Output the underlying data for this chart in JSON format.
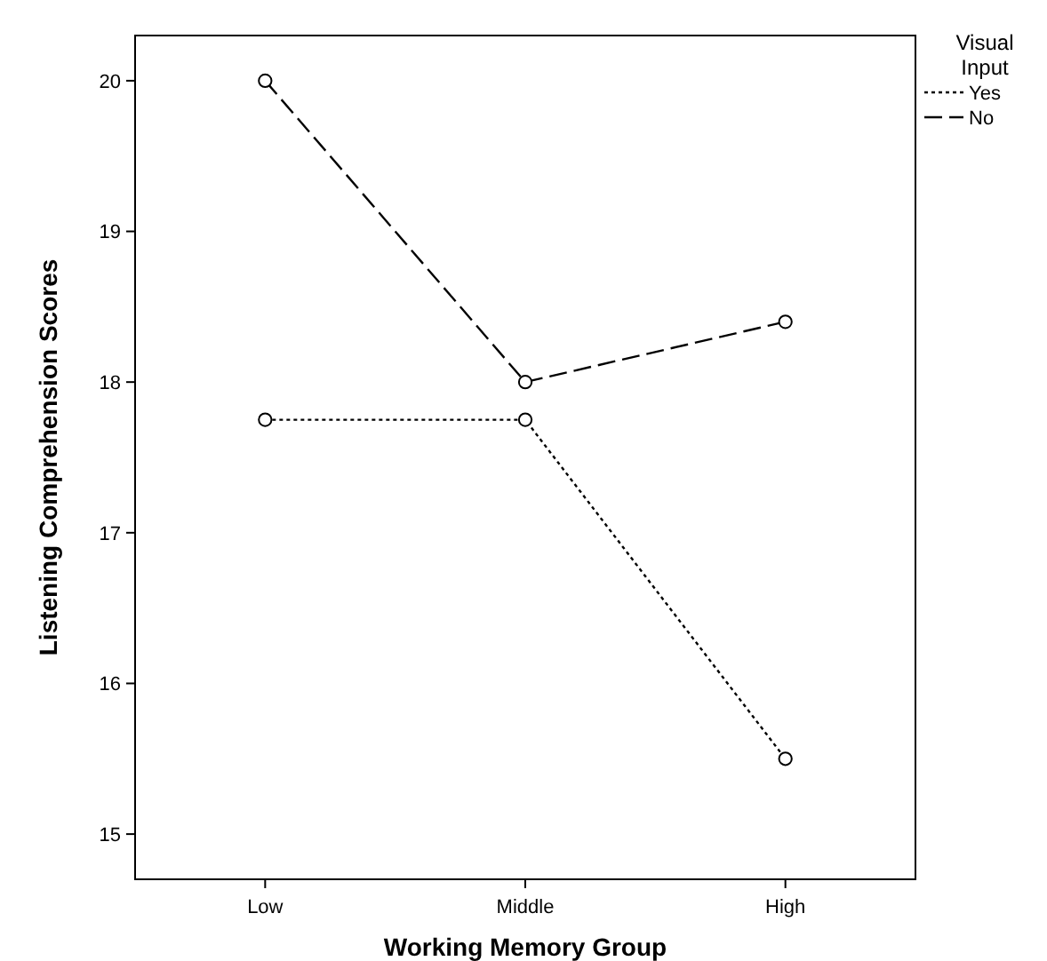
{
  "chart_data": {
    "type": "line",
    "xlabel": "Working Memory Group",
    "ylabel": "Listening Comprehension Scores",
    "legend_title": "Visual Input",
    "categories": [
      "Low",
      "Middle",
      "High"
    ],
    "series": [
      {
        "name": "Yes",
        "color": "#000000",
        "values": [
          17.75,
          17.75,
          15.5
        ],
        "line_style": "dotted"
      },
      {
        "name": "No",
        "color": "#000000",
        "values": [
          20,
          18,
          18.4
        ],
        "line_style": "dashed"
      }
    ],
    "ylim": [
      14.7,
      20.3
    ],
    "yticks": [
      15,
      16,
      17,
      18,
      19,
      20
    ],
    "marker": "circle",
    "legend": "top right"
  }
}
